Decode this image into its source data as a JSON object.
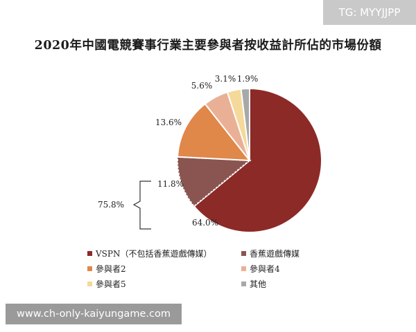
{
  "watermark_top": "TG: MYYJJPP",
  "watermark_bottom": "www.ch-only-kaiyungame.com",
  "chart_data": {
    "type": "pie",
    "title": "2020年中國電競賽事行業主要參與者按收益計所佔的市場份額",
    "slices": [
      {
        "label": "VSPN（不包括香蕉遊戲傳媒）",
        "value": 64.0,
        "display": "64.0%",
        "color": "#8c2a28"
      },
      {
        "label": "香蕉遊戲傳媒",
        "value": 11.8,
        "display": "11.8%",
        "color": "#8a5550"
      },
      {
        "label": "參與者2",
        "value": 13.6,
        "display": "13.6%",
        "color": "#e0874a"
      },
      {
        "label": "參與者4",
        "value": 5.6,
        "display": "5.6%",
        "color": "#eab096"
      },
      {
        "label": "參與者5",
        "value": 3.1,
        "display": "3.1%",
        "color": "#f5d99a"
      },
      {
        "label": "其他",
        "value": 1.9,
        "display": "1.9%",
        "color": "#a8a8a8"
      }
    ],
    "bracket_total": "75.8%",
    "legend_order": [
      0,
      1,
      2,
      3,
      4,
      5
    ]
  }
}
